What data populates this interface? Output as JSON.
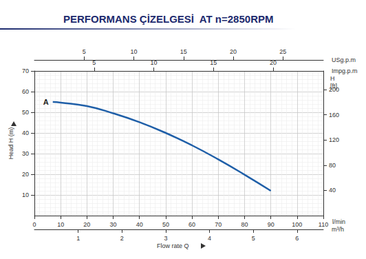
{
  "chart_data": {
    "type": "line",
    "title": "PERFORMANS ÇİZELGESİ  AT n=2850RPM",
    "xlabel": "Flow rate Q",
    "ylabel": "Head H (m)",
    "x": [
      7,
      10,
      20,
      30,
      40,
      50,
      60,
      70,
      80,
      90
    ],
    "series": [
      {
        "name": "A",
        "color": "#1f5fa8",
        "values": [
          55,
          54.7,
          53,
          49.5,
          45.2,
          40,
          34,
          27.2,
          19.8,
          12
        ]
      }
    ],
    "xlim": [
      0,
      110
    ],
    "xticks": [
      0,
      10,
      20,
      30,
      40,
      50,
      60,
      70,
      80,
      90,
      100,
      110
    ],
    "xunit": "l/min",
    "x2lim": [
      0,
      6.6
    ],
    "x2ticks": [
      1,
      2,
      3,
      4,
      5,
      6
    ],
    "x2unit": "m³/h",
    "x3lim": [
      0,
      29.06
    ],
    "x3ticks": [
      5,
      10,
      15,
      20,
      25
    ],
    "x3unit": "USg.p.m",
    "x4lim": [
      0,
      24.2
    ],
    "x4ticks": [
      5,
      10,
      15,
      20
    ],
    "x4unit": "Impg.p.m",
    "ylim": [
      0,
      70
    ],
    "yticks": [
      10,
      20,
      30,
      40,
      50,
      60,
      70
    ],
    "y2lim": [
      0,
      229.66
    ],
    "y2ticks": [
      40,
      80,
      120,
      160,
      200
    ],
    "y2label": "H\n[ft]",
    "grid": true
  }
}
